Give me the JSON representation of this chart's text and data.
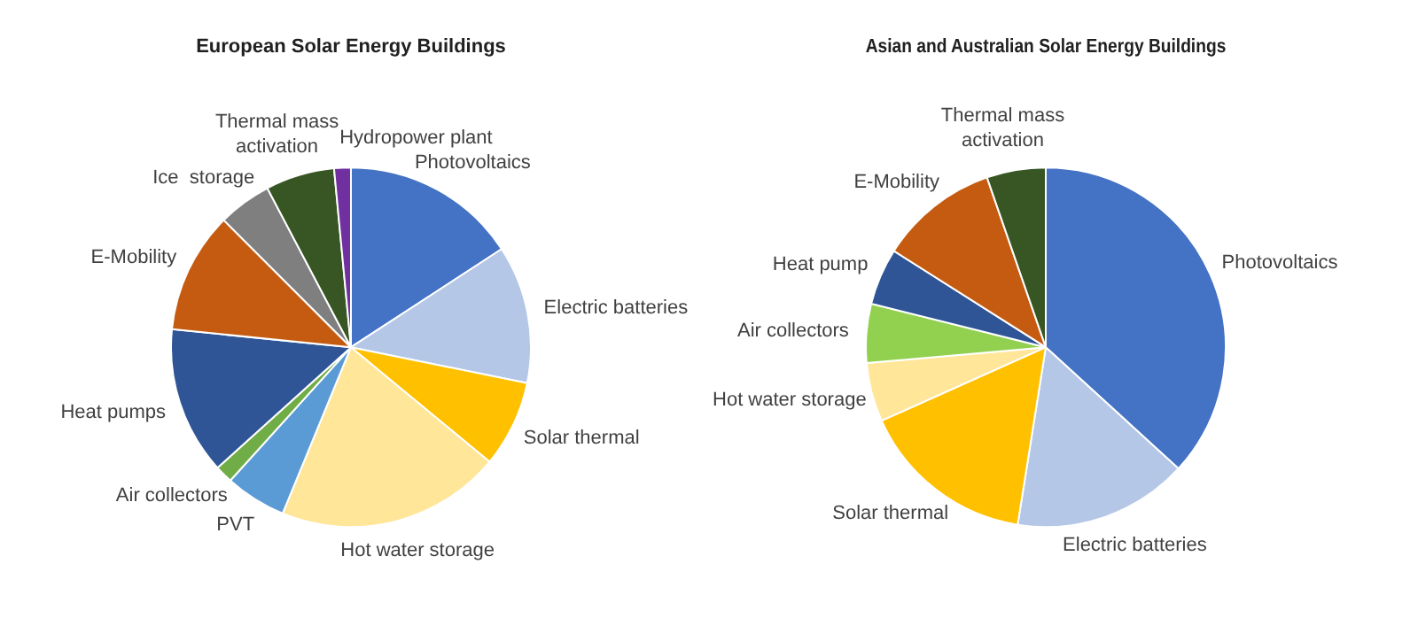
{
  "chart_data": [
    {
      "type": "pie",
      "title": "European Solar Energy Buildings",
      "legend": false,
      "categories": [
        "Photovoltaics",
        "Electric batteries",
        "Solar thermal",
        "Hot water storage",
        "PVT",
        "Air collectors",
        "Heat pumps",
        "E-Mobility",
        "Ice  storage",
        "Thermal mass activation",
        "Hydropower plant"
      ],
      "values": [
        15.8,
        12.4,
        7.8,
        20.2,
        5.5,
        1.6,
        13.3,
        10.9,
        4.8,
        6.2,
        1.5
      ],
      "colors": [
        "#4472c4",
        "#b4c7e7",
        "#ffc000",
        "#ffe699",
        "#5b9bd5",
        "#70ad47",
        "#2f5597",
        "#c55a11",
        "#7f7f7f",
        "#375623",
        "#7030a0"
      ]
    },
    {
      "type": "pie",
      "title": "Asian and Australian Solar Energy Buildings",
      "legend": false,
      "categories": [
        "Photovoltaics",
        "Electric batteries",
        "Solar thermal",
        "Hot water storage",
        "Air collectors",
        "Heat pump",
        "E-Mobility",
        "Thermal mass activation"
      ],
      "values": [
        36.8,
        15.7,
        15.8,
        5.3,
        5.3,
        5.1,
        10.7,
        5.3
      ],
      "colors": [
        "#4472c4",
        "#b4c7e7",
        "#ffc000",
        "#ffe699",
        "#92d050",
        "#2f5597",
        "#c55a11",
        "#375623"
      ]
    }
  ]
}
